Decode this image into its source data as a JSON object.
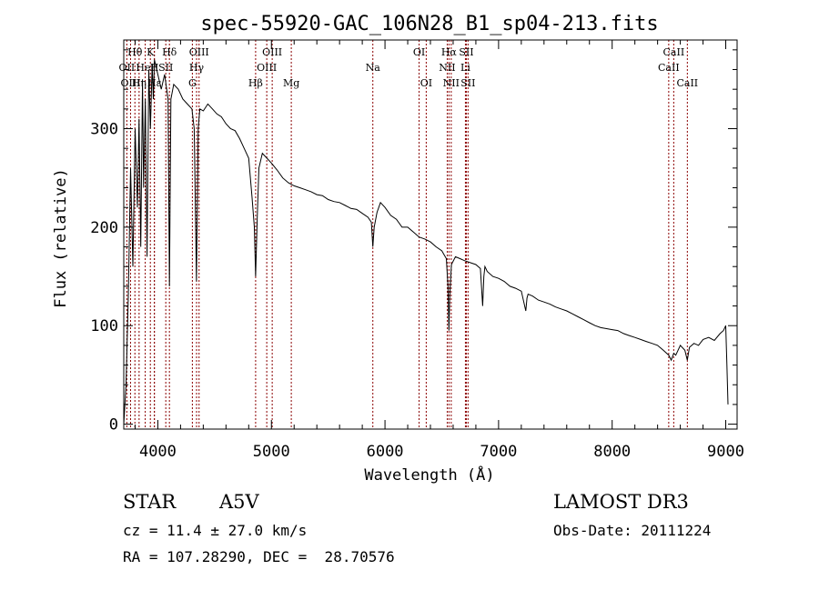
{
  "chart_data": {
    "type": "line",
    "title": "spec-55920-GAC_106N28_B1_sp04-213.fits",
    "xlabel": "Wavelength (Å)",
    "ylabel": "Flux (relative)",
    "xlim": [
      3700,
      9100
    ],
    "ylim": [
      -5,
      390
    ],
    "x_ticks": [
      4000,
      5000,
      6000,
      7000,
      8000,
      9000
    ],
    "y_ticks": [
      0,
      100,
      200,
      300
    ],
    "grid": false,
    "series": [
      {
        "name": "flux",
        "x": [
          3700,
          3720,
          3740,
          3760,
          3780,
          3800,
          3820,
          3835,
          3850,
          3865,
          3875,
          3890,
          3905,
          3920,
          3935,
          3950,
          3960,
          3970,
          3990,
          4010,
          4030,
          4060,
          4090,
          4102,
          4115,
          4140,
          4180,
          4220,
          4260,
          4300,
          4320,
          4340,
          4355,
          4370,
          4400,
          4440,
          4480,
          4520,
          4560,
          4600,
          4640,
          4680,
          4720,
          4760,
          4800,
          4830,
          4850,
          4861,
          4875,
          4890,
          4920,
          4960,
          5000,
          5050,
          5100,
          5150,
          5200,
          5250,
          5300,
          5350,
          5400,
          5450,
          5500,
          5550,
          5600,
          5650,
          5700,
          5750,
          5800,
          5850,
          5880,
          5893,
          5905,
          5930,
          5960,
          6000,
          6050,
          6100,
          6150,
          6200,
          6250,
          6300,
          6350,
          6400,
          6450,
          6500,
          6540,
          6555,
          6563,
          6570,
          6585,
          6620,
          6660,
          6700,
          6750,
          6800,
          6840,
          6860,
          6870,
          6880,
          6900,
          6950,
          7000,
          7050,
          7100,
          7150,
          7200,
          7240,
          7250,
          7260,
          7300,
          7350,
          7400,
          7450,
          7500,
          7550,
          7600,
          7650,
          7700,
          7750,
          7800,
          7850,
          7900,
          7950,
          8000,
          8050,
          8100,
          8150,
          8200,
          8250,
          8300,
          8350,
          8400,
          8450,
          8498,
          8520,
          8542,
          8560,
          8600,
          8640,
          8662,
          8680,
          8720,
          8760,
          8800,
          8850,
          8900,
          8950,
          8980,
          9000,
          9010,
          9020
        ],
        "values": [
          0,
          40,
          130,
          260,
          160,
          300,
          220,
          310,
          180,
          350,
          240,
          330,
          170,
          360,
          300,
          365,
          330,
          370,
          360,
          350,
          340,
          355,
          330,
          140,
          330,
          345,
          340,
          330,
          325,
          320,
          300,
          145,
          300,
          320,
          318,
          325,
          320,
          315,
          312,
          305,
          300,
          298,
          290,
          280,
          270,
          230,
          200,
          150,
          210,
          260,
          275,
          270,
          265,
          258,
          250,
          245,
          242,
          240,
          238,
          236,
          233,
          232,
          228,
          226,
          225,
          222,
          219,
          218,
          214,
          210,
          205,
          180,
          200,
          215,
          225,
          220,
          212,
          208,
          200,
          200,
          195,
          190,
          188,
          185,
          180,
          176,
          168,
          140,
          95,
          130,
          162,
          170,
          168,
          166,
          164,
          162,
          158,
          120,
          150,
          160,
          155,
          150,
          148,
          145,
          140,
          138,
          135,
          115,
          128,
          132,
          130,
          126,
          124,
          122,
          119,
          117,
          115,
          112,
          109,
          106,
          103,
          100,
          98,
          97,
          96,
          95,
          92,
          90,
          88,
          86,
          84,
          82,
          80,
          75,
          70,
          65,
          72,
          70,
          80,
          75,
          65,
          78,
          82,
          80,
          86,
          88,
          85,
          92,
          95,
          100,
          60,
          20
        ]
      }
    ],
    "lines": [
      {
        "label": "Hθ",
        "wavelength": 3798,
        "row": 1
      },
      {
        "label": "OII",
        "wavelength": 3727,
        "row": 2
      },
      {
        "label": "OIII",
        "wavelength": 3760,
        "row": 3
      },
      {
        "label": "Hη",
        "wavelength": 3835,
        "row": 3
      },
      {
        "label": "HeI",
        "wavelength": 3889,
        "row": 2
      },
      {
        "label": "K",
        "wavelength": 3934,
        "row": 1
      },
      {
        "label": "H",
        "wavelength": 3969,
        "row": 2
      },
      {
        "label": "Hε",
        "wavelength": 3970,
        "row": 3
      },
      {
        "label": "Hδ",
        "wavelength": 4102,
        "row": 1
      },
      {
        "label": "SII",
        "wavelength": 4070,
        "row": 2
      },
      {
        "label": "G",
        "wavelength": 4304,
        "row": 3
      },
      {
        "label": "Hγ",
        "wavelength": 4341,
        "row": 2
      },
      {
        "label": "OIII",
        "wavelength": 4363,
        "row": 1
      },
      {
        "label": "Hβ",
        "wavelength": 4861,
        "row": 3
      },
      {
        "label": "OIII",
        "wavelength": 4959,
        "row": 2
      },
      {
        "label": "OIII",
        "wavelength": 5007,
        "row": 1
      },
      {
        "label": "Mg",
        "wavelength": 5175,
        "row": 3
      },
      {
        "label": "Na",
        "wavelength": 5893,
        "row": 2
      },
      {
        "label": "OI",
        "wavelength": 6300,
        "row": 1
      },
      {
        "label": "OI",
        "wavelength": 6363,
        "row": 3
      },
      {
        "label": "NII",
        "wavelength": 6548,
        "row": 2
      },
      {
        "label": "Hα",
        "wavelength": 6563,
        "row": 1
      },
      {
        "label": "NII",
        "wavelength": 6583,
        "row": 3
      },
      {
        "label": "Li",
        "wavelength": 6708,
        "row": 2
      },
      {
        "label": "SII",
        "wavelength": 6716,
        "row": 1
      },
      {
        "label": "SII",
        "wavelength": 6731,
        "row": 3
      },
      {
        "label": "CaII",
        "wavelength": 8498,
        "row": 2
      },
      {
        "label": "CaII",
        "wavelength": 8542,
        "row": 1
      },
      {
        "label": "CaII",
        "wavelength": 8662,
        "row": 3
      }
    ],
    "line_color": "#8b0000"
  },
  "info": {
    "object_class": "STAR",
    "subclass": "A5V",
    "survey": "LAMOST DR3",
    "cz": "cz = 11.4 ± 27.0 km/s",
    "obs_date": "Obs-Date: 20111224",
    "coords": "RA = 107.28290, DEC =  28.70576"
  }
}
